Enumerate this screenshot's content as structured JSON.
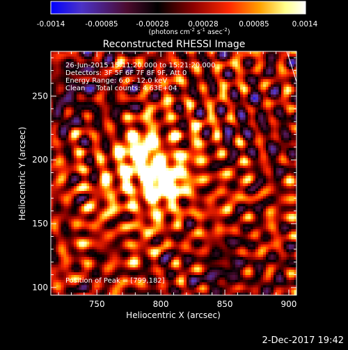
{
  "colorbar": {
    "ticks": [
      "-0.0014",
      "-0.00085",
      "-0.00028",
      "0.00028",
      "0.00085",
      "0.0014"
    ],
    "units": "(photons cm",
    "units_exp1": "-2",
    "units_mid": " s",
    "units_exp2": "-1",
    "units_tail": " asec",
    "units_exp3": "-2",
    "units_close": ")"
  },
  "title": "Reconstructed RHESSI Image",
  "info": {
    "line1": "26-Jun-2015 15:11:20.000 to 15:21:20.000",
    "line2": "Detectors: 3F 5F 6F 7F 8F 9F, Att 0",
    "line3": "Energy Range: 6.0 - 12.0 keV",
    "line4": "Clean     Total counts: 4.63E+04"
  },
  "peak_label": "Position of Peak = [799,182]",
  "footer_date": "2-Dec-2017 19:42",
  "chart_data": {
    "type": "heatmap",
    "title": "Reconstructed RHESSI Image",
    "xlabel": "Heliocentric X (arcsec)",
    "ylabel": "Heliocentric Y (arcsec)",
    "xlim": [
      714,
      906
    ],
    "ylim": [
      94,
      285
    ],
    "xticks": [
      750,
      800,
      850,
      900
    ],
    "yticks": [
      100,
      150,
      200,
      250
    ],
    "color_range": [
      -0.0014,
      0.0014
    ],
    "colormap": [
      "#0000ff",
      "#5a3cc8",
      "#4b0a2d",
      "#000000",
      "#8c0000",
      "#ff2800",
      "#ffa000",
      "#ffff8c",
      "#ffffff"
    ],
    "peak": [
      799,
      182
    ],
    "sources": [
      {
        "x": 800,
        "y": 183,
        "amp": 0.00135,
        "sx": 11,
        "sy": 9
      },
      {
        "x": 785,
        "y": 206,
        "amp": 0.0011,
        "sx": 9,
        "sy": 9
      },
      {
        "x": 790,
        "y": 190,
        "amp": 0.00065,
        "sx": 30,
        "sy": 30
      }
    ]
  }
}
